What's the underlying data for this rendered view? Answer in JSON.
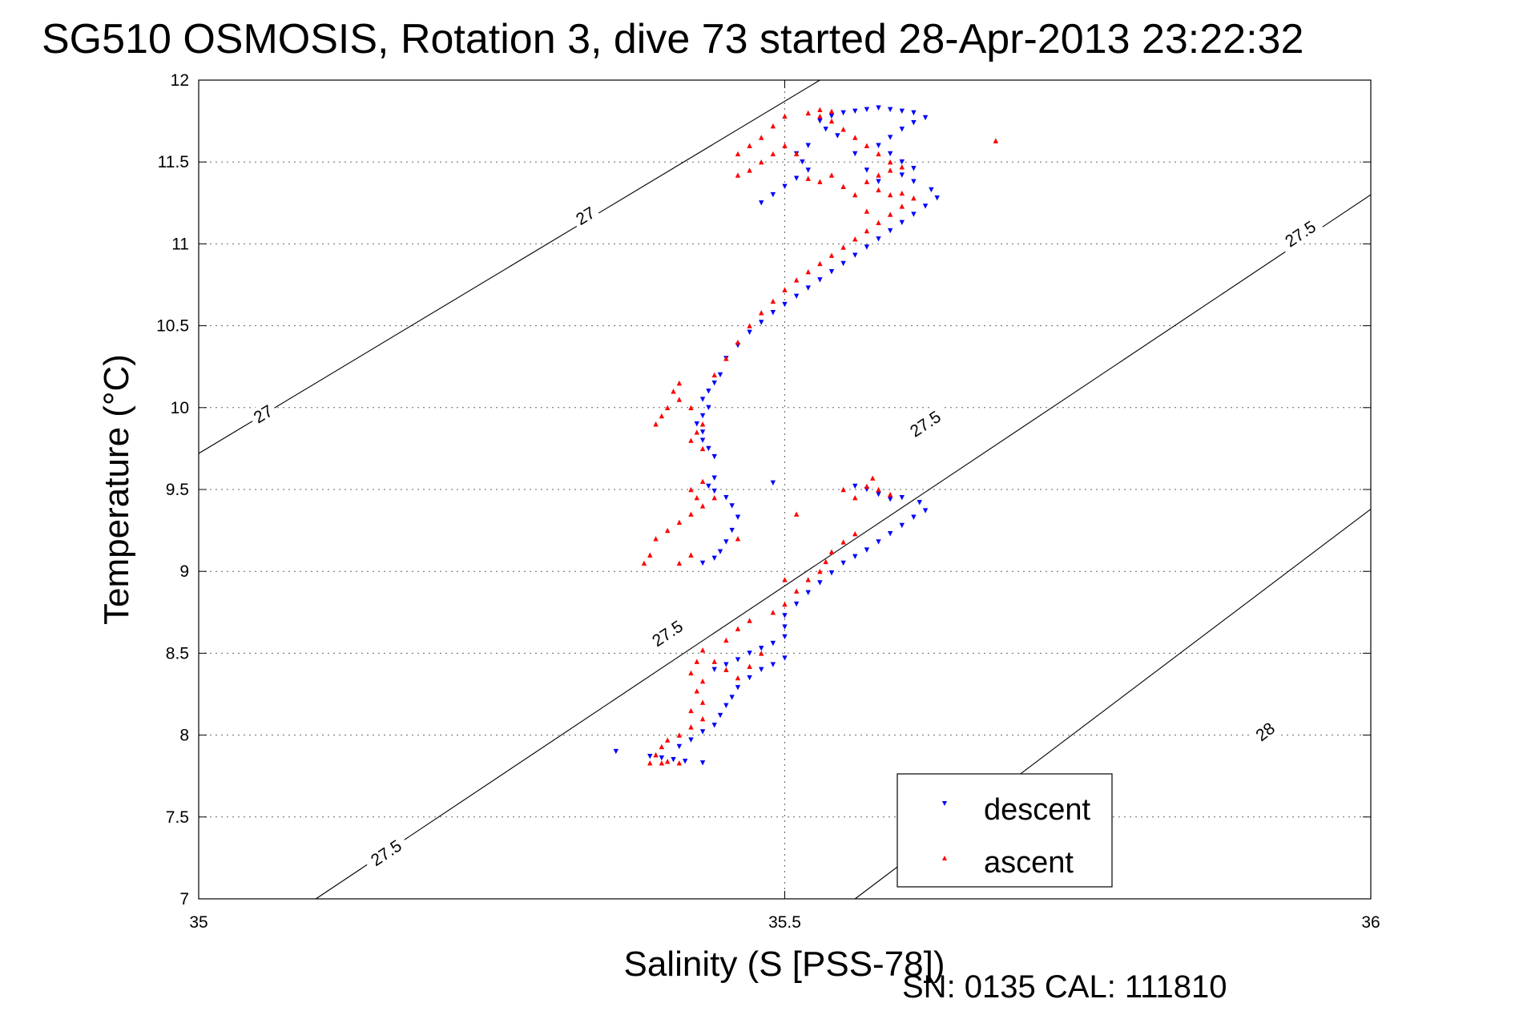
{
  "chart_data": {
    "type": "scatter",
    "title": "SG510 OSMOSIS, Rotation 3, dive 73 started 28-Apr-2013 23:22:32",
    "xlabel": "Salinity (S [PSS-78])",
    "ylabel": "Temperature (°C)",
    "xlim": [
      35,
      36
    ],
    "ylim": [
      7,
      12
    ],
    "xticks": [
      35,
      35.5,
      36
    ],
    "xtick_labels": [
      "35",
      "35.5",
      "36"
    ],
    "yticks": [
      7,
      7.5,
      8,
      8.5,
      9,
      9.5,
      10,
      10.5,
      11,
      11.5,
      12
    ],
    "ytick_labels": [
      "7",
      "7.5",
      "8",
      "8.5",
      "9",
      "9.5",
      "10",
      "10.5",
      "11",
      "11.5",
      "12"
    ],
    "grid": true,
    "legend_position": "bottom-right",
    "footer": "SN: 0135  CAL: 111810",
    "colors": {
      "descent": "#0000ff",
      "ascent": "#ff0000",
      "contour": "#000000"
    },
    "contours": [
      {
        "label": "27",
        "points": [
          [
            35,
            9.72
          ],
          [
            35.53,
            12.0
          ]
        ],
        "label_positions": [
          [
            35.055,
            9.96
          ],
          [
            35.33,
            11.17
          ]
        ]
      },
      {
        "label": "27.5",
        "points": [
          [
            35.1,
            7.0
          ],
          [
            36,
            11.3
          ]
        ],
        "label_positions": [
          [
            35.16,
            7.28
          ],
          [
            35.4,
            8.62
          ],
          [
            35.62,
            9.9
          ],
          [
            35.94,
            11.06
          ]
        ]
      },
      {
        "label": "28",
        "points": [
          [
            35.56,
            7.0
          ],
          [
            36,
            9.38
          ]
        ],
        "label_positions": [
          [
            35.91,
            8.02
          ]
        ]
      }
    ],
    "series": [
      {
        "name": "descent",
        "marker": "triangle-down",
        "points": [
          [
            35.356,
            7.9
          ],
          [
            35.385,
            7.87
          ],
          [
            35.395,
            7.86
          ],
          [
            35.405,
            7.85
          ],
          [
            35.415,
            7.84
          ],
          [
            35.43,
            7.83
          ],
          [
            35.41,
            7.93
          ],
          [
            35.42,
            7.97
          ],
          [
            35.43,
            8.02
          ],
          [
            35.44,
            8.06
          ],
          [
            35.445,
            8.12
          ],
          [
            35.45,
            8.18
          ],
          [
            35.455,
            8.23
          ],
          [
            35.46,
            8.29
          ],
          [
            35.47,
            8.35
          ],
          [
            35.48,
            8.4
          ],
          [
            35.49,
            8.43
          ],
          [
            35.5,
            8.47
          ],
          [
            35.44,
            8.4
          ],
          [
            35.45,
            8.43
          ],
          [
            35.46,
            8.46
          ],
          [
            35.47,
            8.5
          ],
          [
            35.48,
            8.53
          ],
          [
            35.49,
            8.56
          ],
          [
            35.5,
            8.6
          ],
          [
            35.5,
            8.66
          ],
          [
            35.5,
            8.73
          ],
          [
            35.51,
            8.8
          ],
          [
            35.52,
            8.87
          ],
          [
            35.53,
            8.93
          ],
          [
            35.54,
            8.99
          ],
          [
            35.55,
            9.05
          ],
          [
            35.56,
            9.09
          ],
          [
            35.57,
            9.13
          ],
          [
            35.58,
            9.18
          ],
          [
            35.59,
            9.23
          ],
          [
            35.6,
            9.28
          ],
          [
            35.61,
            9.33
          ],
          [
            35.62,
            9.37
          ],
          [
            35.615,
            9.42
          ],
          [
            35.6,
            9.45
          ],
          [
            35.59,
            9.44
          ],
          [
            35.58,
            9.47
          ],
          [
            35.57,
            9.5
          ],
          [
            35.56,
            9.52
          ],
          [
            35.49,
            9.54
          ],
          [
            35.43,
            9.05
          ],
          [
            35.44,
            9.08
          ],
          [
            35.445,
            9.12
          ],
          [
            35.45,
            9.18
          ],
          [
            35.455,
            9.25
          ],
          [
            35.46,
            9.33
          ],
          [
            35.455,
            9.4
          ],
          [
            35.45,
            9.45
          ],
          [
            35.44,
            9.49
          ],
          [
            35.435,
            9.52
          ],
          [
            35.44,
            9.57
          ],
          [
            35.44,
            9.7
          ],
          [
            35.435,
            9.75
          ],
          [
            35.43,
            9.8
          ],
          [
            35.43,
            9.85
          ],
          [
            35.425,
            9.9
          ],
          [
            35.43,
            9.95
          ],
          [
            35.435,
            10.0
          ],
          [
            35.43,
            10.05
          ],
          [
            35.435,
            10.1
          ],
          [
            35.44,
            10.15
          ],
          [
            35.445,
            10.2
          ],
          [
            35.45,
            10.3
          ],
          [
            35.46,
            10.38
          ],
          [
            35.47,
            10.46
          ],
          [
            35.48,
            10.52
          ],
          [
            35.49,
            10.58
          ],
          [
            35.5,
            10.63
          ],
          [
            35.51,
            10.68
          ],
          [
            35.52,
            10.73
          ],
          [
            35.53,
            10.78
          ],
          [
            35.54,
            10.83
          ],
          [
            35.55,
            10.88
          ],
          [
            35.56,
            10.93
          ],
          [
            35.57,
            10.98
          ],
          [
            35.58,
            11.03
          ],
          [
            35.59,
            11.08
          ],
          [
            35.6,
            11.13
          ],
          [
            35.61,
            11.18
          ],
          [
            35.62,
            11.23
          ],
          [
            35.63,
            11.28
          ],
          [
            35.625,
            11.33
          ],
          [
            35.61,
            11.38
          ],
          [
            35.6,
            11.42
          ],
          [
            35.61,
            11.46
          ],
          [
            35.6,
            11.5
          ],
          [
            35.59,
            11.55
          ],
          [
            35.58,
            11.6
          ],
          [
            35.59,
            11.65
          ],
          [
            35.6,
            11.7
          ],
          [
            35.61,
            11.74
          ],
          [
            35.62,
            11.77
          ],
          [
            35.61,
            11.8
          ],
          [
            35.6,
            11.81
          ],
          [
            35.59,
            11.82
          ],
          [
            35.58,
            11.83
          ],
          [
            35.57,
            11.82
          ],
          [
            35.56,
            11.81
          ],
          [
            35.55,
            11.8
          ],
          [
            35.54,
            11.78
          ],
          [
            35.53,
            11.75
          ],
          [
            35.535,
            11.7
          ],
          [
            35.545,
            11.66
          ],
          [
            35.52,
            11.6
          ],
          [
            35.51,
            11.55
          ],
          [
            35.515,
            11.5
          ],
          [
            35.52,
            11.45
          ],
          [
            35.51,
            11.4
          ],
          [
            35.5,
            11.35
          ],
          [
            35.49,
            11.3
          ],
          [
            35.48,
            11.25
          ],
          [
            35.56,
            11.55
          ],
          [
            35.57,
            11.45
          ],
          [
            35.58,
            11.38
          ]
        ]
      },
      {
        "name": "ascent",
        "marker": "triangle-up",
        "points": [
          [
            35.385,
            7.83
          ],
          [
            35.395,
            7.83
          ],
          [
            35.4,
            7.84
          ],
          [
            35.41,
            7.83
          ],
          [
            35.39,
            7.88
          ],
          [
            35.395,
            7.93
          ],
          [
            35.4,
            7.97
          ],
          [
            35.41,
            8.0
          ],
          [
            35.42,
            8.05
          ],
          [
            35.43,
            8.1
          ],
          [
            35.42,
            8.15
          ],
          [
            35.43,
            8.2
          ],
          [
            35.425,
            8.27
          ],
          [
            35.43,
            8.33
          ],
          [
            35.42,
            8.38
          ],
          [
            35.425,
            8.45
          ],
          [
            35.43,
            8.52
          ],
          [
            35.44,
            8.45
          ],
          [
            35.45,
            8.4
          ],
          [
            35.46,
            8.35
          ],
          [
            35.47,
            8.42
          ],
          [
            35.48,
            8.5
          ],
          [
            35.45,
            8.58
          ],
          [
            35.46,
            8.65
          ],
          [
            35.47,
            8.7
          ],
          [
            35.49,
            8.75
          ],
          [
            35.5,
            8.8
          ],
          [
            35.51,
            8.88
          ],
          [
            35.52,
            8.95
          ],
          [
            35.53,
            9.0
          ],
          [
            35.535,
            9.06
          ],
          [
            35.54,
            9.12
          ],
          [
            35.55,
            9.18
          ],
          [
            35.56,
            9.23
          ],
          [
            35.5,
            8.95
          ],
          [
            35.46,
            9.2
          ],
          [
            35.51,
            9.35
          ],
          [
            35.55,
            9.5
          ],
          [
            35.56,
            9.45
          ],
          [
            35.57,
            9.52
          ],
          [
            35.575,
            9.57
          ],
          [
            35.58,
            9.5
          ],
          [
            35.59,
            9.47
          ],
          [
            35.38,
            9.05
          ],
          [
            35.385,
            9.1
          ],
          [
            35.39,
            9.2
          ],
          [
            35.4,
            9.25
          ],
          [
            35.41,
            9.3
          ],
          [
            35.42,
            9.35
          ],
          [
            35.43,
            9.4
          ],
          [
            35.425,
            9.45
          ],
          [
            35.42,
            9.5
          ],
          [
            35.43,
            9.55
          ],
          [
            35.42,
            9.1
          ],
          [
            35.41,
            9.05
          ],
          [
            35.44,
            9.45
          ],
          [
            35.39,
            9.9
          ],
          [
            35.395,
            9.95
          ],
          [
            35.4,
            10.0
          ],
          [
            35.41,
            10.05
          ],
          [
            35.405,
            10.1
          ],
          [
            35.41,
            10.15
          ],
          [
            35.42,
            10.0
          ],
          [
            35.43,
            9.9
          ],
          [
            35.425,
            9.85
          ],
          [
            35.42,
            9.8
          ],
          [
            35.43,
            9.75
          ],
          [
            35.44,
            10.2
          ],
          [
            35.45,
            10.3
          ],
          [
            35.46,
            10.4
          ],
          [
            35.47,
            10.5
          ],
          [
            35.48,
            10.58
          ],
          [
            35.49,
            10.65
          ],
          [
            35.5,
            10.72
          ],
          [
            35.51,
            10.78
          ],
          [
            35.52,
            10.83
          ],
          [
            35.53,
            10.88
          ],
          [
            35.54,
            10.93
          ],
          [
            35.55,
            10.98
          ],
          [
            35.56,
            11.03
          ],
          [
            35.57,
            11.08
          ],
          [
            35.58,
            11.13
          ],
          [
            35.59,
            11.18
          ],
          [
            35.6,
            11.23
          ],
          [
            35.61,
            11.28
          ],
          [
            35.6,
            11.31
          ],
          [
            35.59,
            11.3
          ],
          [
            35.58,
            11.33
          ],
          [
            35.57,
            11.38
          ],
          [
            35.58,
            11.42
          ],
          [
            35.59,
            11.45
          ],
          [
            35.6,
            11.47
          ],
          [
            35.59,
            11.5
          ],
          [
            35.58,
            11.55
          ],
          [
            35.57,
            11.6
          ],
          [
            35.56,
            11.65
          ],
          [
            35.55,
            11.7
          ],
          [
            35.54,
            11.75
          ],
          [
            35.53,
            11.78
          ],
          [
            35.52,
            11.8
          ],
          [
            35.53,
            11.82
          ],
          [
            35.54,
            11.81
          ],
          [
            35.5,
            11.6
          ],
          [
            35.49,
            11.55
          ],
          [
            35.48,
            11.5
          ],
          [
            35.47,
            11.45
          ],
          [
            35.46,
            11.42
          ],
          [
            35.46,
            11.55
          ],
          [
            35.47,
            11.6
          ],
          [
            35.48,
            11.65
          ],
          [
            35.49,
            11.72
          ],
          [
            35.5,
            11.78
          ],
          [
            35.51,
            11.55
          ],
          [
            35.52,
            11.4
          ],
          [
            35.53,
            11.38
          ],
          [
            35.54,
            11.42
          ],
          [
            35.55,
            11.35
          ],
          [
            35.56,
            11.3
          ],
          [
            35.57,
            11.2
          ],
          [
            35.68,
            11.63
          ]
        ]
      }
    ]
  }
}
